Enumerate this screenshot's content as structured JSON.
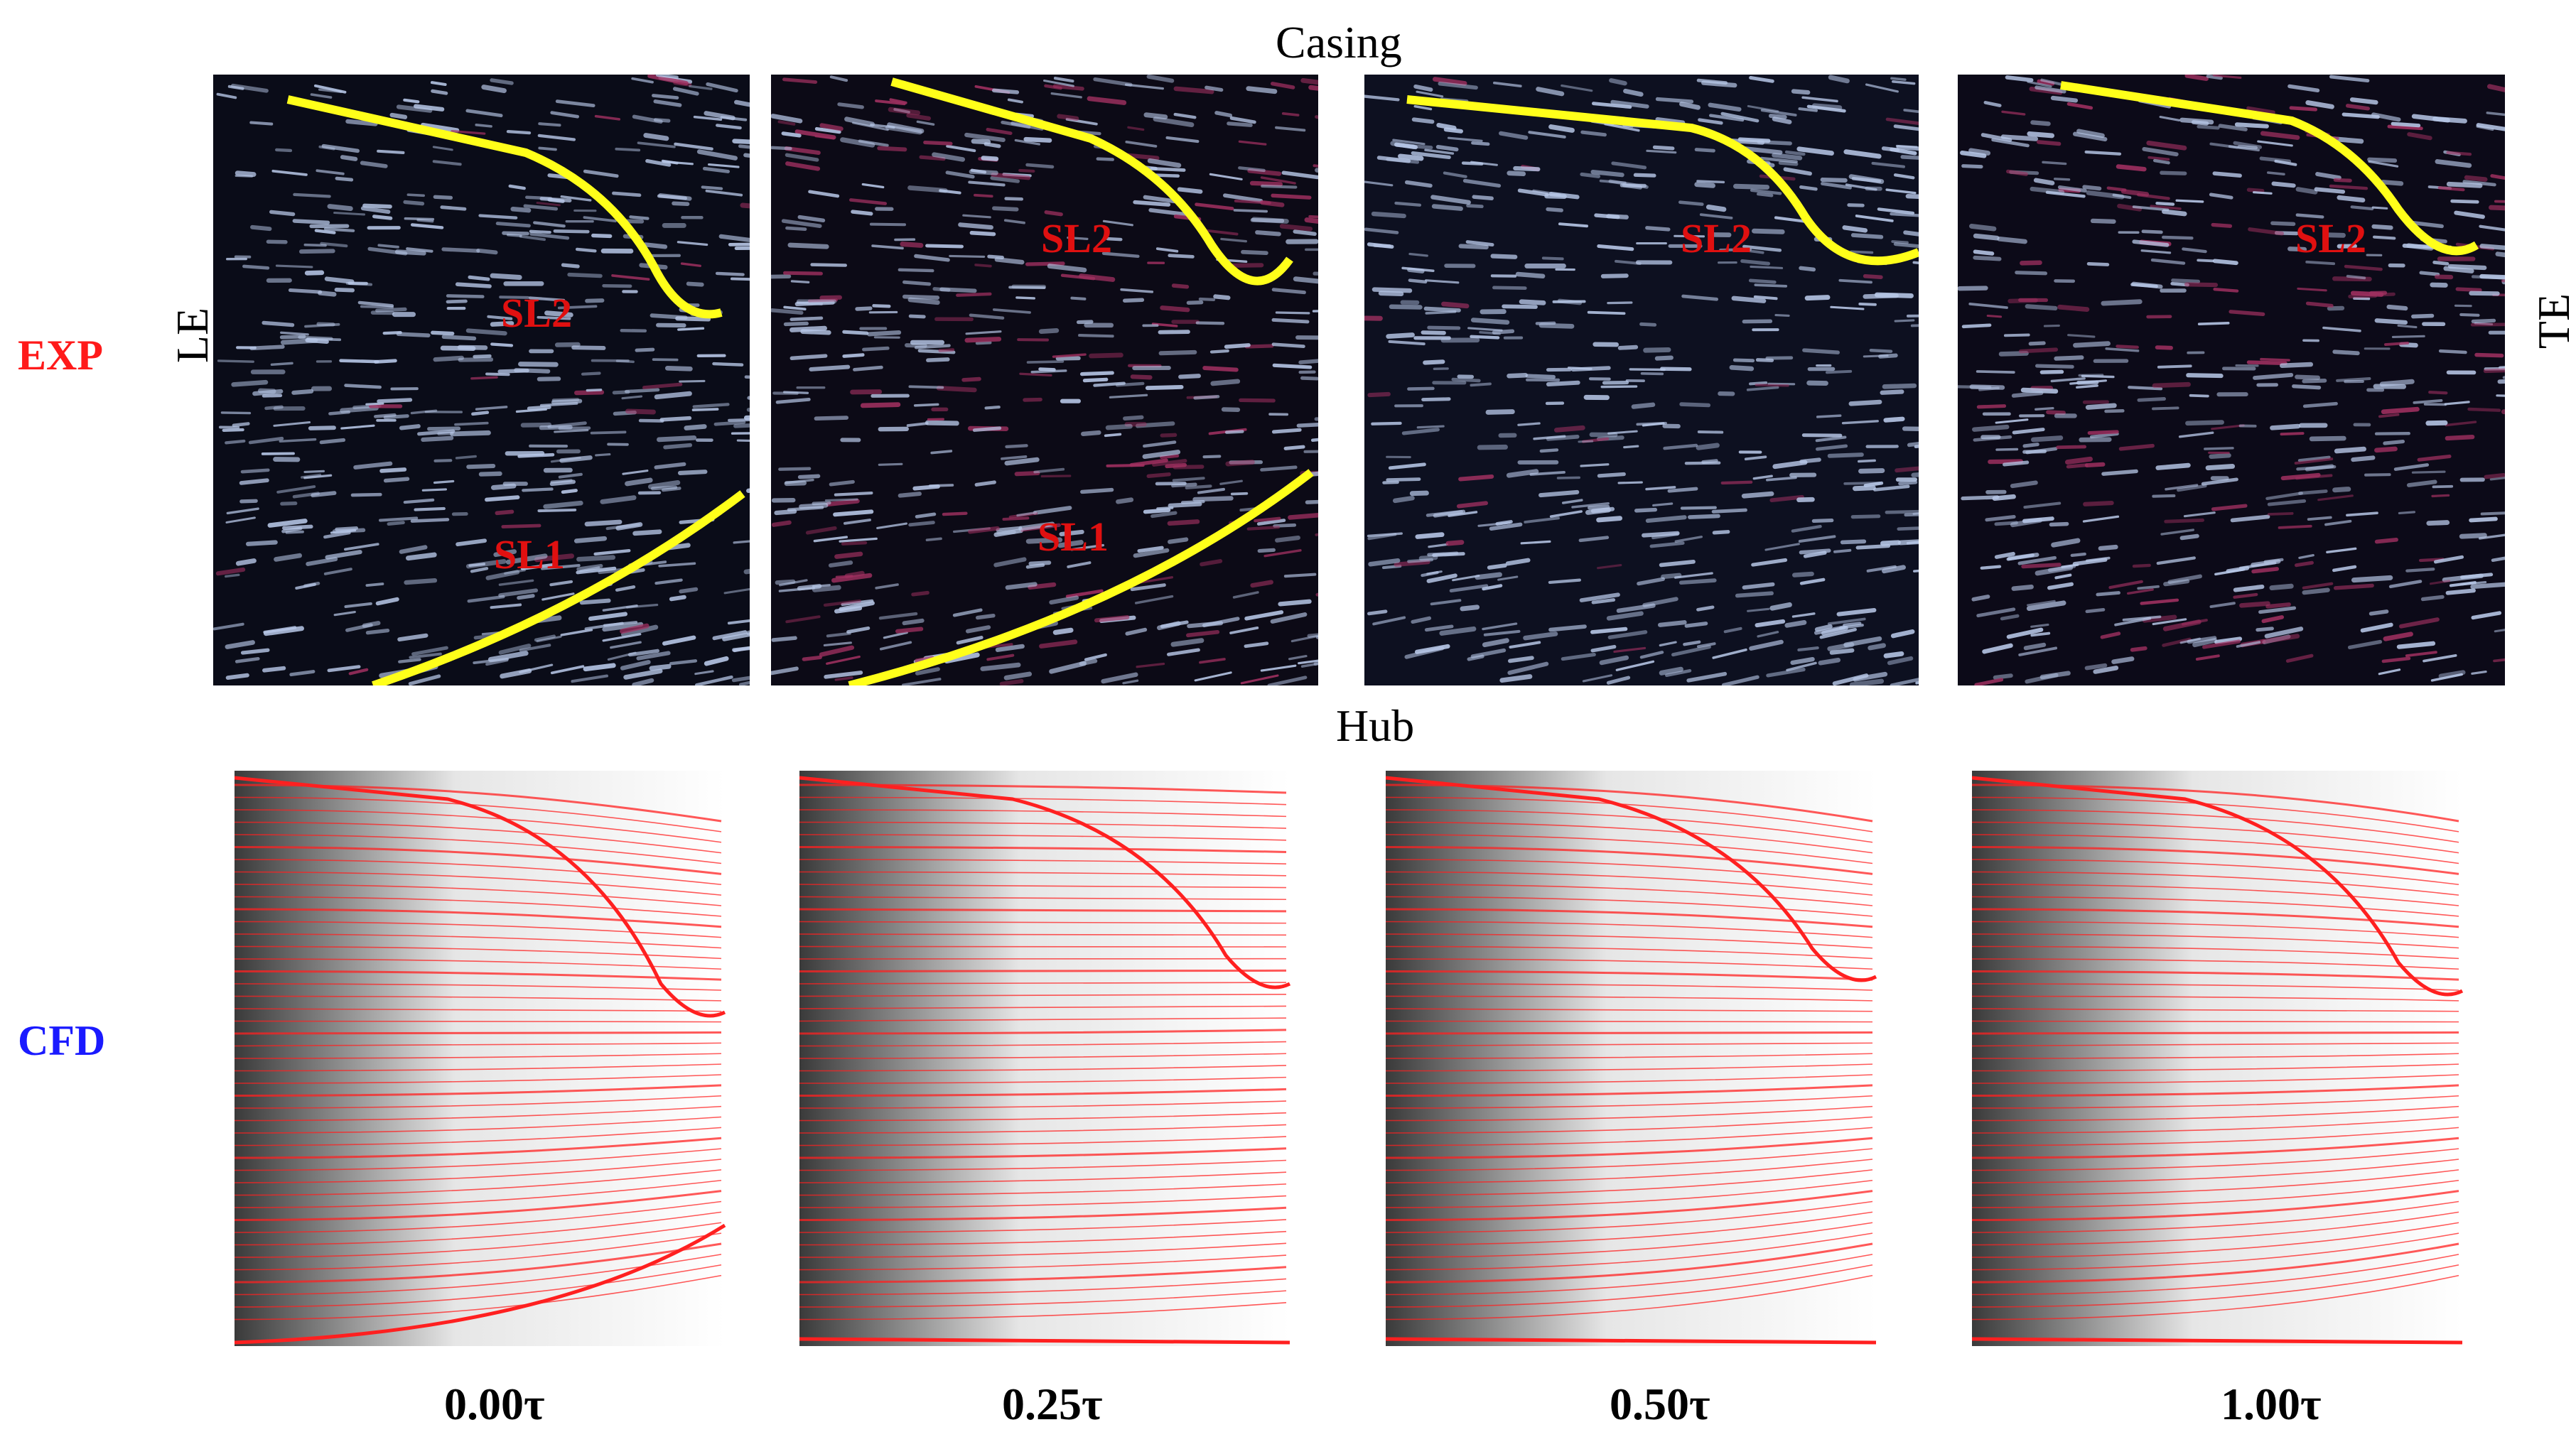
{
  "figure": {
    "labels": {
      "casing": "Casing",
      "hub": "Hub",
      "leading_edge": "LE",
      "trailing_edge": "TE"
    },
    "rows": [
      {
        "id": "exp",
        "label": "EXP",
        "color": "#ff1a1a"
      },
      {
        "id": "cfd",
        "label": "CFD",
        "color": "#1a1aff"
      }
    ],
    "columns": [
      {
        "time": "0.00τ",
        "annotations": [
          "SL2",
          "SL1"
        ]
      },
      {
        "time": "0.25τ",
        "annotations": [
          "SL2",
          "SL1"
        ]
      },
      {
        "time": "0.50τ",
        "annotations": [
          "SL2"
        ]
      },
      {
        "time": "1.00τ",
        "annotations": [
          "SL2"
        ]
      }
    ],
    "colors": {
      "separation_line": "#ffff1a",
      "annotation_text": "#e01010",
      "streamline": "#ff2020",
      "oil_dark": "#0a0c18",
      "oil_streak": "#b8c8e8"
    }
  }
}
